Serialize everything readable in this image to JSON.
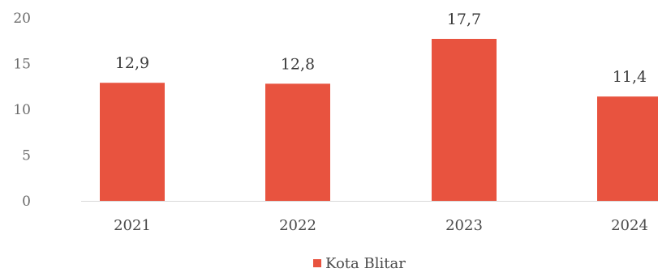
{
  "chart_data": {
    "type": "bar",
    "categories": [
      "2021",
      "2022",
      "2023",
      "2024"
    ],
    "series": [
      {
        "name": "Kota Blitar",
        "values": [
          12.9,
          12.8,
          17.7,
          11.4
        ],
        "value_labels": [
          "12,9",
          "12,8",
          "17,7",
          "11,4"
        ],
        "color": "#e8533f"
      }
    ],
    "y_ticks": [
      "0",
      "5",
      "10",
      "15",
      "20"
    ],
    "ylim": [
      0,
      20
    ],
    "grid": false,
    "legend_position": "bottom-center"
  },
  "colors": {
    "bar": "#e8533f",
    "axis": "#d9d9d9"
  }
}
